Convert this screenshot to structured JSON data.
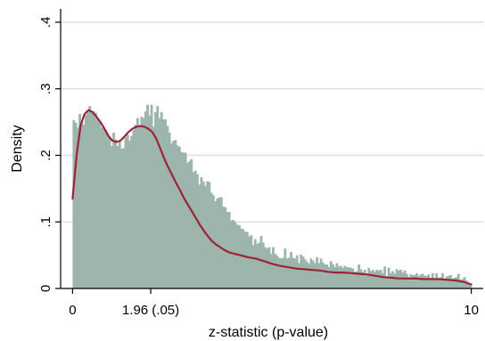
{
  "chart_data": {
    "type": "histogram",
    "xlabel": "z-statistic (p-value)",
    "ylabel": "Density",
    "xlim": [
      -0.3,
      10.3
    ],
    "ylim": [
      0,
      0.42
    ],
    "x_ticks": [
      {
        "value": 0,
        "label": "0"
      },
      {
        "value": 1.96,
        "label": "1.96 (.05)"
      },
      {
        "value": 10,
        "label": "10"
      }
    ],
    "y_ticks": [
      {
        "value": 0,
        "label": "0"
      },
      {
        "value": 0.1,
        "label": ".1"
      },
      {
        "value": 0.2,
        "label": ".2"
      },
      {
        "value": 0.3,
        "label": ".3"
      },
      {
        "value": 0.4,
        "label": ".4"
      }
    ],
    "grid": true,
    "colors": {
      "bars": "#9db5ad",
      "curve": "#9b2436",
      "grid": "#d6e5ea",
      "axis": "#000000"
    },
    "histogram": {
      "bin_start": 0,
      "bin_width": 0.05,
      "densities": [
        0.253,
        0.249,
        0.242,
        0.262,
        0.251,
        0.246,
        0.261,
        0.266,
        0.274,
        0.264,
        0.266,
        0.264,
        0.255,
        0.25,
        0.242,
        0.242,
        0.238,
        0.233,
        0.227,
        0.214,
        0.234,
        0.224,
        0.214,
        0.221,
        0.21,
        0.211,
        0.227,
        0.231,
        0.222,
        0.229,
        0.238,
        0.246,
        0.256,
        0.245,
        0.258,
        0.256,
        0.266,
        0.276,
        0.26,
        0.276,
        0.243,
        0.265,
        0.274,
        0.256,
        0.265,
        0.254,
        0.254,
        0.244,
        0.234,
        0.218,
        0.222,
        0.223,
        0.215,
        0.213,
        0.205,
        0.204,
        0.204,
        0.189,
        0.191,
        0.194,
        0.175,
        0.177,
        0.172,
        0.156,
        0.167,
        0.161,
        0.154,
        0.161,
        0.16,
        0.144,
        0.14,
        0.131,
        0.135,
        0.137,
        0.137,
        0.123,
        0.122,
        0.115,
        0.115,
        0.102,
        0.103,
        0.1,
        0.096,
        0.095,
        0.09,
        0.089,
        0.085,
        0.085,
        0.078,
        0.08,
        0.065,
        0.074,
        0.067,
        0.069,
        0.079,
        0.069,
        0.062,
        0.06,
        0.062,
        0.052,
        0.062,
        0.052,
        0.049,
        0.046,
        0.045,
        0.046,
        0.06,
        0.045,
        0.046,
        0.055,
        0.046,
        0.045,
        0.05,
        0.038,
        0.051,
        0.048,
        0.044,
        0.04,
        0.037,
        0.045,
        0.042,
        0.038,
        0.047,
        0.038,
        0.045,
        0.039,
        0.036,
        0.036,
        0.032,
        0.041,
        0.036,
        0.032,
        0.038,
        0.033,
        0.034,
        0.031,
        0.034,
        0.032,
        0.032,
        0.031,
        0.03,
        0.025,
        0.026,
        0.036,
        0.029,
        0.025,
        0.028,
        0.022,
        0.031,
        0.026,
        0.028,
        0.025,
        0.028,
        0.027,
        0.028,
        0.023,
        0.033,
        0.018,
        0.031,
        0.023,
        0.026,
        0.022,
        0.029,
        0.027,
        0.028,
        0.024,
        0.027,
        0.022,
        0.017,
        0.021,
        0.02,
        0.02,
        0.023,
        0.019,
        0.021,
        0.022,
        0.019,
        0.019,
        0.021,
        0.016,
        0.023,
        0.015,
        0.023,
        0.014,
        0.017,
        0.023,
        0.012,
        0.018,
        0.019,
        0.02,
        0.015,
        0.016,
        0.017,
        0.022,
        0.013,
        0.014,
        0.017,
        0.012,
        0.009,
        0.006
      ]
    },
    "density_curve": {
      "x": [
        0.0,
        0.1,
        0.2,
        0.3,
        0.4,
        0.5,
        0.6,
        0.7,
        0.8,
        0.9,
        1.0,
        1.1,
        1.2,
        1.3,
        1.4,
        1.5,
        1.6,
        1.7,
        1.8,
        1.9,
        2.0,
        2.1,
        2.2,
        2.3,
        2.4,
        2.5,
        2.6,
        2.7,
        2.8,
        2.9,
        3.0,
        3.1,
        3.2,
        3.3,
        3.4,
        3.5,
        3.6,
        3.7,
        3.8,
        3.9,
        4.0,
        4.2,
        4.4,
        4.6,
        4.8,
        5.0,
        5.2,
        5.4,
        5.6,
        5.8,
        6.0,
        6.2,
        6.4,
        6.6,
        6.8,
        7.0,
        7.2,
        7.4,
        7.6,
        7.8,
        8.0,
        8.2,
        8.4,
        8.6,
        8.8,
        9.0,
        9.2,
        9.4,
        9.6,
        9.8,
        10.0
      ],
      "y": [
        0.135,
        0.2,
        0.245,
        0.262,
        0.268,
        0.265,
        0.258,
        0.25,
        0.24,
        0.229,
        0.222,
        0.22,
        0.222,
        0.228,
        0.235,
        0.24,
        0.243,
        0.244,
        0.243,
        0.24,
        0.235,
        0.225,
        0.21,
        0.195,
        0.182,
        0.17,
        0.158,
        0.147,
        0.135,
        0.125,
        0.115,
        0.105,
        0.095,
        0.086,
        0.078,
        0.071,
        0.066,
        0.062,
        0.058,
        0.055,
        0.053,
        0.05,
        0.047,
        0.045,
        0.041,
        0.037,
        0.034,
        0.032,
        0.03,
        0.029,
        0.028,
        0.027,
        0.025,
        0.024,
        0.024,
        0.023,
        0.022,
        0.021,
        0.019,
        0.017,
        0.016,
        0.015,
        0.015,
        0.015,
        0.014,
        0.014,
        0.014,
        0.013,
        0.012,
        0.01,
        0.006
      ]
    }
  }
}
